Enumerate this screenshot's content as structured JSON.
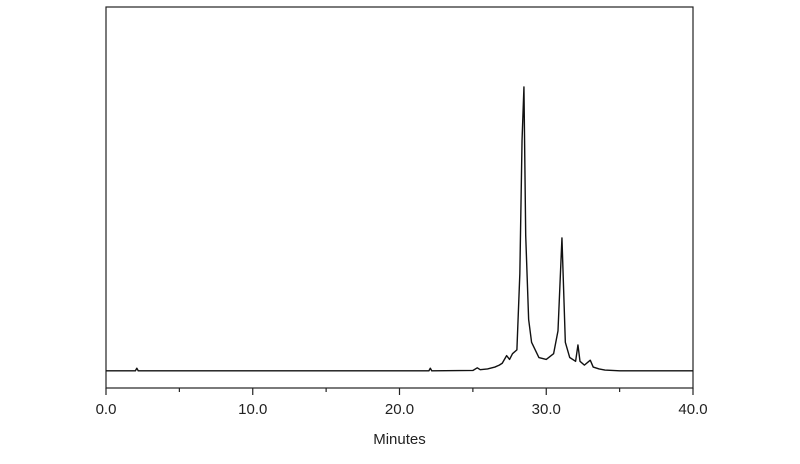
{
  "chart_data": {
    "type": "line",
    "x_label": "Minutes",
    "xlim": [
      0,
      40
    ],
    "xticks": [
      {
        "value": 0,
        "label": "0.0"
      },
      {
        "value": 10,
        "label": "10.0"
      },
      {
        "value": 20,
        "label": "20.0"
      },
      {
        "value": 30,
        "label": "30.0"
      },
      {
        "value": 40,
        "label": "40.0"
      }
    ],
    "xminor_ticks": [
      5,
      15,
      25,
      35
    ],
    "ylim": [
      0,
      100
    ],
    "series": [
      {
        "color": "#111111",
        "x": [
          0,
          2,
          2.1,
          2.2,
          3,
          10,
          20,
          22,
          22.1,
          22.2,
          25,
          25.3,
          25.5,
          26,
          26.5,
          26.8,
          27,
          27.3,
          27.5,
          27.7,
          28,
          28.2,
          28.35,
          28.48,
          28.6,
          28.8,
          29,
          29.5,
          30,
          30.5,
          30.8,
          31.07,
          31.3,
          31.6,
          32,
          32.16,
          32.3,
          32.6,
          33.0,
          33.2,
          33.6,
          34,
          35,
          40
        ],
        "values": [
          4.5,
          4.5,
          5.2,
          4.5,
          4.5,
          4.5,
          4.5,
          4.5,
          5.2,
          4.5,
          4.6,
          5.3,
          4.8,
          5,
          5.5,
          6,
          6.5,
          8.5,
          7.5,
          9,
          10,
          30,
          65,
          79,
          40,
          18,
          12,
          8,
          7.5,
          9,
          15,
          39.4,
          12,
          8,
          7,
          11.3,
          7,
          6,
          7.3,
          5.5,
          5,
          4.7,
          4.5,
          4.5
        ]
      }
    ]
  }
}
